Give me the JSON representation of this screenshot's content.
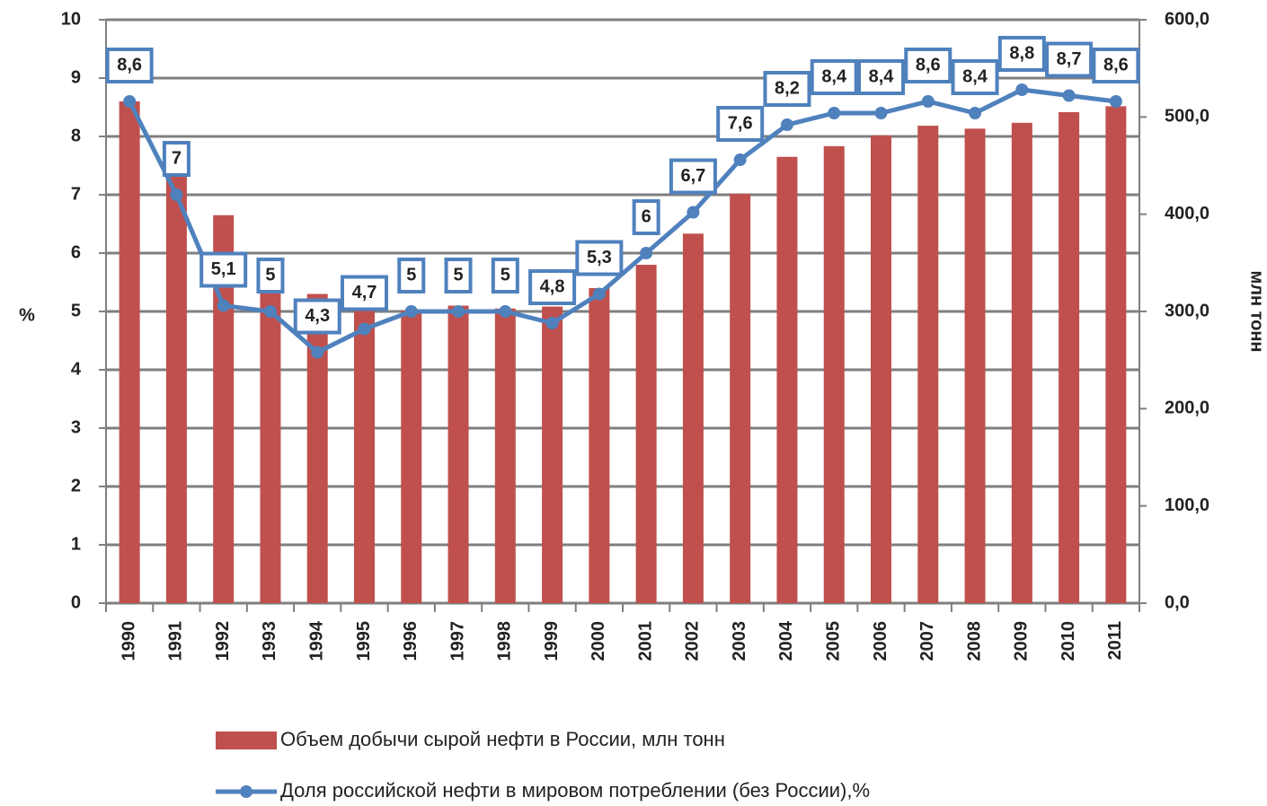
{
  "chart_data": {
    "type": "combo",
    "y_label": "%",
    "y2_label": "млн тонн",
    "categories": [
      "1990",
      "1991",
      "1992",
      "1993",
      "1994",
      "1995",
      "1996",
      "1997",
      "1998",
      "1999",
      "2000",
      "2001",
      "2002",
      "2003",
      "2004",
      "2005",
      "2006",
      "2007",
      "2008",
      "2009",
      "2010",
      "2011"
    ],
    "series": [
      {
        "name": "Объем добычи сырой нефти  в России, млн тонн",
        "type": "bar",
        "axis": "y2",
        "color": "#c0504d",
        "values": [
          516,
          462,
          399,
          354,
          318,
          307,
          301,
          306,
          303,
          305,
          324,
          348,
          380,
          421,
          459,
          470,
          481,
          491,
          488,
          494,
          505,
          511
        ]
      },
      {
        "name": "Доля российской нефти в мировом потреблении  (без России),%",
        "type": "line",
        "color": "#4f81bd",
        "values": [
          8.6,
          7,
          5.1,
          5,
          4.3,
          4.7,
          5,
          5,
          5,
          4.8,
          5.3,
          6,
          6.7,
          7.6,
          8.2,
          8.4,
          8.4,
          8.6,
          8.4,
          8.8,
          8.7,
          8.6
        ],
        "value_labels": [
          "8,6",
          "7",
          "5,1",
          "5",
          "4,3",
          "4,7",
          "5",
          "5",
          "5",
          "4,8",
          "5,3",
          "6",
          "6,7",
          "7,6",
          "8,2",
          "8,4",
          "8,4",
          "8,6",
          "8,4",
          "8,8",
          "8,7",
          "8,6"
        ]
      }
    ],
    "ylim": [
      0,
      10
    ],
    "yticks": [
      0,
      1,
      2,
      3,
      4,
      5,
      6,
      7,
      8,
      9,
      10
    ],
    "y2lim": [
      0,
      600
    ],
    "y2ticks": [
      {
        "value": 0,
        "label": "0,0"
      },
      {
        "value": 100,
        "label": "100,0"
      },
      {
        "value": 200,
        "label": "200,0"
      },
      {
        "value": 300,
        "label": "300,0"
      },
      {
        "value": 400,
        "label": "400,0"
      },
      {
        "value": 500,
        "label": "500,0"
      },
      {
        "value": 600,
        "label": "600,0"
      }
    ],
    "grid": true,
    "legend": "bottom"
  }
}
